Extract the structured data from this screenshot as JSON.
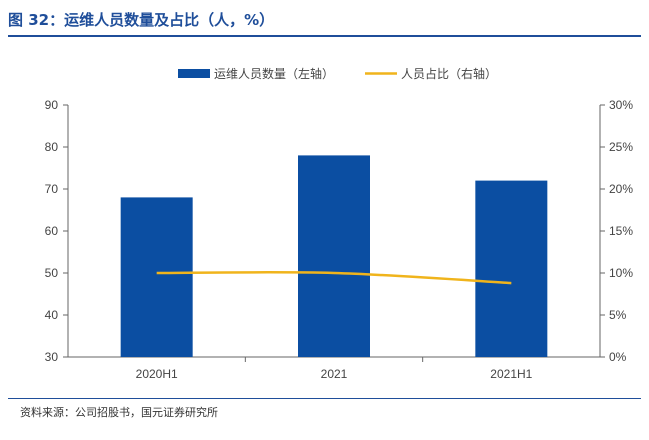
{
  "figure_title": "图 32：运维人员数量及占比（人，%）",
  "source": "资料来源：公司招股书，国元证券研究所",
  "colors": {
    "bar": "#0b4ea2",
    "line": "#f0b41c",
    "title": "#1f4e9a",
    "axis": "#666666",
    "text": "#444444"
  },
  "chart_data": {
    "type": "bar",
    "title": "",
    "categories": [
      "2020H1",
      "2021",
      "2021H1"
    ],
    "series": [
      {
        "name": "运维人员数量（左轴）",
        "type": "bar",
        "axis": "left",
        "values": [
          68,
          78,
          72
        ]
      },
      {
        "name": "人员占比（右轴）",
        "type": "line",
        "axis": "right",
        "values": [
          10.0,
          10.0,
          8.8
        ]
      }
    ],
    "y_left": {
      "min": 30,
      "max": 90,
      "step": 10,
      "tick_labels": [
        "30",
        "40",
        "50",
        "60",
        "70",
        "80",
        "90"
      ]
    },
    "y_right": {
      "min": 0,
      "max": 30,
      "step": 5,
      "tick_labels": [
        "0%",
        "5%",
        "10%",
        "15%",
        "20%",
        "25%",
        "30%"
      ]
    },
    "grid": false,
    "legend_position": "top-center"
  }
}
